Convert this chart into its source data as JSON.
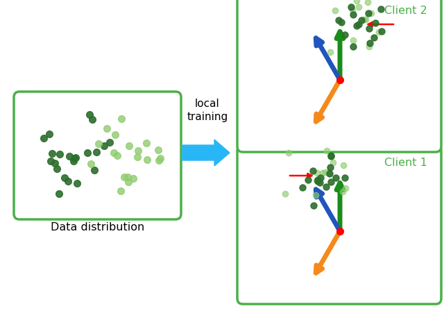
{
  "background_color": "#ffffff",
  "fig_width": 6.4,
  "fig_height": 4.48,
  "dpi": 100,
  "arrow_color_green": "#1a8c1a",
  "arrow_color_orange": "#f5891a",
  "arrow_color_blue": "#2255bb",
  "dot_dark_green": "#2d6e2d",
  "dot_light_green": "#8fcc6f",
  "box_green": "#4ab04a",
  "client1_label": "Client 1",
  "client2_label": "Client 2",
  "data_dist_label": "Data distribution",
  "local_training_label": "local\ntraining"
}
